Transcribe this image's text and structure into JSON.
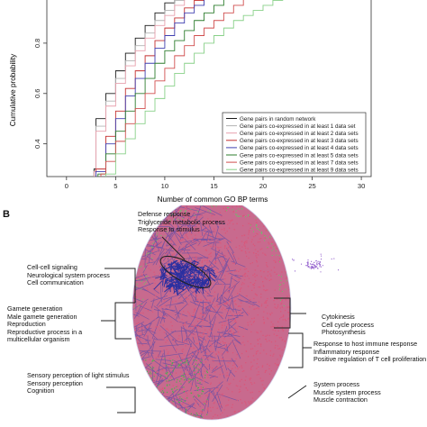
{
  "chart_data": {
    "type": "line",
    "panel": "A",
    "xlabel": "Number of common GO BP terms",
    "ylabel": "Cumulative probability",
    "xlim": [
      -2,
      31
    ],
    "ylim": [
      0.27,
      1.0
    ],
    "xticks": [
      0,
      5,
      10,
      15,
      20,
      25,
      30
    ],
    "yticks": [
      0.4,
      0.6,
      0.8
    ],
    "grid": false,
    "legend_position": "bottom-right",
    "series": [
      {
        "name": "Gene pairs in random network",
        "color": "#1a1a1a",
        "x": [
          2.8,
          3,
          4,
          5,
          6,
          7,
          8,
          9,
          10,
          11
        ],
        "y": [
          0.3,
          0.5,
          0.6,
          0.69,
          0.76,
          0.82,
          0.87,
          0.92,
          0.96,
          1.0
        ]
      },
      {
        "name": "Gene pairs co-expressed in at least 1 data set",
        "color": "#b3b3b3",
        "x": [
          2.8,
          3,
          4,
          5,
          6,
          7,
          8,
          9,
          10,
          11,
          12
        ],
        "y": [
          0.29,
          0.47,
          0.57,
          0.66,
          0.73,
          0.79,
          0.84,
          0.89,
          0.93,
          0.97,
          1.0
        ]
      },
      {
        "name": "Gene pairs co-expressed in at least 2 data sets",
        "color": "#e8a0ad",
        "x": [
          2.8,
          3,
          4,
          5,
          6,
          7,
          8,
          9,
          10,
          11,
          12,
          13
        ],
        "y": [
          0.29,
          0.45,
          0.55,
          0.64,
          0.71,
          0.77,
          0.82,
          0.87,
          0.91,
          0.95,
          0.98,
          1.0
        ]
      },
      {
        "name": "Gene pairs co-expressed in at least 3 data sets",
        "color": "#c42f2f",
        "x": [
          3,
          4,
          5,
          6,
          7,
          8,
          9,
          10,
          11,
          12,
          13,
          14
        ],
        "y": [
          0.3,
          0.43,
          0.53,
          0.62,
          0.69,
          0.75,
          0.81,
          0.86,
          0.9,
          0.94,
          0.97,
          1.0
        ]
      },
      {
        "name": "Gene pairs co-expressed in at least 4 data sets",
        "color": "#4040b0",
        "x": [
          3,
          4,
          5,
          6,
          7,
          8,
          9,
          10,
          11,
          12,
          13,
          14,
          15
        ],
        "y": [
          0.29,
          0.4,
          0.5,
          0.59,
          0.66,
          0.72,
          0.78,
          0.83,
          0.88,
          0.92,
          0.95,
          0.98,
          1.0
        ]
      },
      {
        "name": "Gene pairs co-expressed in at least 5 data sets",
        "color": "#2e7d2e",
        "x": [
          3.2,
          4,
          5,
          6,
          7,
          8,
          9,
          10,
          11,
          12,
          13,
          14,
          15,
          16,
          17
        ],
        "y": [
          0.28,
          0.36,
          0.45,
          0.53,
          0.6,
          0.66,
          0.72,
          0.77,
          0.81,
          0.85,
          0.89,
          0.92,
          0.95,
          0.98,
          1.0
        ]
      },
      {
        "name": "Gene pairs co-expressed in at least 7 data sets",
        "color": "#d04e4e",
        "x": [
          3.5,
          4,
          5,
          6,
          7,
          8,
          9,
          10,
          11,
          12,
          13,
          14,
          15,
          16,
          17,
          18,
          19
        ],
        "y": [
          0.28,
          0.33,
          0.41,
          0.48,
          0.54,
          0.6,
          0.65,
          0.7,
          0.75,
          0.79,
          0.83,
          0.86,
          0.89,
          0.92,
          0.95,
          0.98,
          1.0
        ]
      },
      {
        "name": "Gene pairs co-expressed in at least 9 data sets",
        "color": "#88d088",
        "x": [
          4,
          5,
          6,
          7,
          8,
          9,
          10,
          11,
          12,
          13,
          14,
          15,
          16,
          17,
          18,
          19,
          20,
          21,
          22,
          23
        ],
        "y": [
          0.28,
          0.36,
          0.42,
          0.48,
          0.53,
          0.58,
          0.63,
          0.68,
          0.72,
          0.76,
          0.8,
          0.83,
          0.86,
          0.89,
          0.91,
          0.93,
          0.95,
          0.97,
          0.99,
          1.0
        ]
      }
    ]
  },
  "panel_b": {
    "letter": "B",
    "annotations": {
      "defense": [
        "Defense response",
        "Triglyceride metabolic process",
        "Response to stimulus"
      ],
      "cell_cell": [
        "Cell-cell signaling",
        "Neurological system process",
        "Cell communication"
      ],
      "gamete": [
        "Gamete generation",
        "Male gamete generation",
        "Reproduction",
        "Reproductive process in a",
        "multicellular organism"
      ],
      "sensory": [
        "Sensory perception of light stimulus",
        "Sensory perception",
        "Cognition"
      ],
      "cytokinesis": [
        "Cytokinesis",
        "Cell cycle process",
        "Photosynthesis"
      ],
      "immune": [
        "Response to host immune response",
        "Inflammatory response",
        "Positive regulation of T cell proliferation"
      ],
      "system": [
        "System process",
        "Muscle system process",
        "Muscle contraction"
      ]
    },
    "colors": {
      "red_nodes": "#d9577a",
      "blue_edges": "#3a3fb0",
      "green_nodes": "#4fae4f",
      "purple_cluster": "#9a6ad0"
    }
  }
}
